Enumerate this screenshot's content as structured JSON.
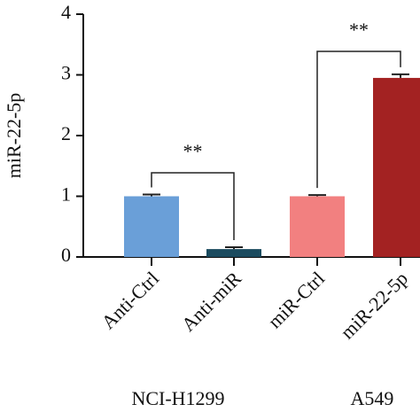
{
  "chart_data": {
    "type": "bar",
    "y_label": "miR-22-5p",
    "categories": [
      "Anti-Ctrl",
      "Anti-miR",
      "miR-Ctrl",
      "miR-22-5p"
    ],
    "values": [
      1.0,
      0.13,
      1.0,
      2.95
    ],
    "errors": [
      0.03,
      0.03,
      0.02,
      0.06
    ],
    "colors": [
      "#6a9fd8",
      "#1b4b5f",
      "#f28080",
      "#a32222"
    ],
    "ylim": [
      0,
      4
    ],
    "yticks": [
      0,
      1,
      2,
      3,
      4
    ],
    "groups": [
      "NCI-H1299",
      "A549"
    ],
    "significance": [
      "**",
      "**"
    ]
  }
}
